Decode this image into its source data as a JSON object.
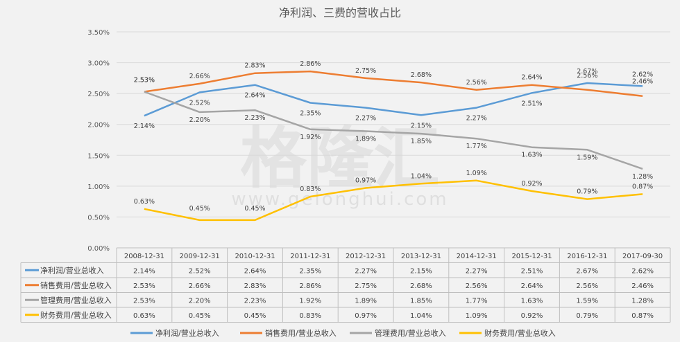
{
  "chart_data": {
    "type": "line",
    "title": "净利润、三费的营收占比",
    "categories": [
      "2008-12-31",
      "2009-12-31",
      "2010-12-31",
      "2011-12-31",
      "2012-12-31",
      "2013-12-31",
      "2014-12-31",
      "2015-12-31",
      "2016-12-31",
      "2017-09-30"
    ],
    "y_ticks": [
      "0.00%",
      "0.50%",
      "1.00%",
      "1.50%",
      "2.00%",
      "2.50%",
      "3.00%",
      "3.50%"
    ],
    "ylim": [
      0,
      3.5
    ],
    "grid": true,
    "legend_position": "bottom",
    "series": [
      {
        "name": "净利润/营业总收入",
        "color": "#5b9bd5",
        "values": [
          2.14,
          2.52,
          2.64,
          2.35,
          2.27,
          2.15,
          2.27,
          2.51,
          2.67,
          2.62
        ],
        "labels": [
          "2.14%",
          "2.52%",
          "2.64%",
          "2.35%",
          "2.27%",
          "2.15%",
          "2.27%",
          "2.51%",
          "2.67%",
          "2.62%"
        ]
      },
      {
        "name": "销售费用/营业总收入",
        "color": "#ed7d31",
        "values": [
          2.53,
          2.66,
          2.83,
          2.86,
          2.75,
          2.68,
          2.56,
          2.64,
          2.56,
          2.46
        ],
        "labels": [
          "2.53%",
          "2.66%",
          "2.83%",
          "2.86%",
          "2.75%",
          "2.68%",
          "2.56%",
          "2.64%",
          "2.56%",
          "2.46%"
        ]
      },
      {
        "name": "管理费用/营业总收入",
        "color": "#a5a5a5",
        "values": [
          2.53,
          2.2,
          2.23,
          1.92,
          1.89,
          1.85,
          1.77,
          1.63,
          1.59,
          1.28
        ],
        "labels": [
          "2.53%",
          "2.20%",
          "2.23%",
          "1.92%",
          "1.89%",
          "1.85%",
          "1.77%",
          "1.63%",
          "1.59%",
          "1.28%"
        ]
      },
      {
        "name": "财务费用/营业总收入",
        "color": "#ffc000",
        "values": [
          0.63,
          0.45,
          0.45,
          0.83,
          0.97,
          1.04,
          1.09,
          0.92,
          0.79,
          0.87
        ],
        "labels": [
          "0.63%",
          "0.45%",
          "0.45%",
          "0.83%",
          "0.97%",
          "1.04%",
          "1.09%",
          "0.92%",
          "0.79%",
          "0.87%"
        ]
      }
    ]
  },
  "watermark": {
    "main": "格隆汇",
    "url": "www.gelonghui.com"
  }
}
